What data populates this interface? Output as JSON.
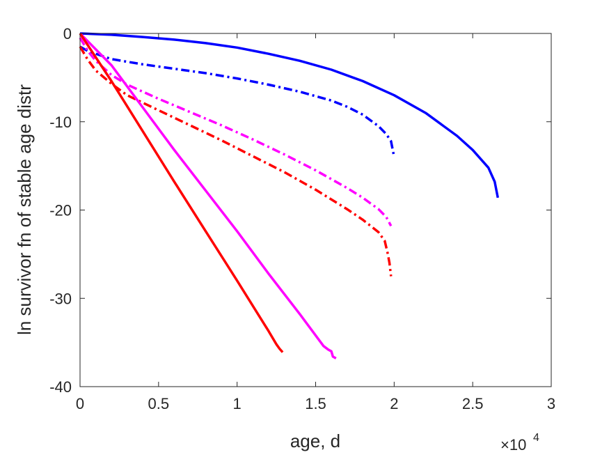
{
  "chart_data": {
    "type": "line",
    "title": "",
    "xlabel": "age, d",
    "ylabel": "ln survivor fn of stable age distr",
    "x_multiplier_label": {
      "base": "×10",
      "exponent": "4"
    },
    "xlim": [
      0,
      30000
    ],
    "ylim": [
      -40,
      0
    ],
    "xticks": [
      0,
      5000,
      10000,
      15000,
      20000,
      25000,
      30000
    ],
    "xtick_labels": [
      "0",
      "0.5",
      "1",
      "1.5",
      "2",
      "2.5",
      "3"
    ],
    "yticks": [
      0,
      -10,
      -20,
      -30,
      -40
    ],
    "ytick_labels": [
      "0",
      "-10",
      "-20",
      "-30",
      "-40"
    ],
    "grid": false,
    "legend": null,
    "series": [
      {
        "color": "#0000ff",
        "style": "solid",
        "x": [
          0,
          2000,
          4000,
          6000,
          8000,
          10000,
          12000,
          14000,
          16000,
          18000,
          20000,
          22000,
          24000,
          25000,
          26000,
          26400,
          26600
        ],
        "y": [
          0,
          -0.15,
          -0.4,
          -0.7,
          -1.1,
          -1.6,
          -2.3,
          -3.1,
          -4.1,
          -5.4,
          -7.0,
          -9.0,
          -11.6,
          -13.2,
          -15.2,
          -16.8,
          -18.6
        ]
      },
      {
        "color": "#0000ff",
        "style": "dashdot",
        "x": [
          0,
          500,
          1000,
          2000,
          4000,
          6000,
          8000,
          10000,
          12000,
          14000,
          16000,
          17000,
          18000,
          19000,
          19500,
          19800,
          20000
        ],
        "y": [
          -1.5,
          -2.0,
          -2.3,
          -2.9,
          -3.5,
          -4.0,
          -4.5,
          -5.1,
          -5.8,
          -6.6,
          -7.6,
          -8.3,
          -9.2,
          -10.5,
          -11.4,
          -12.2,
          -14.0
        ]
      },
      {
        "color": "#ff00ff",
        "style": "dashdot",
        "x": [
          0,
          500,
          1000,
          2000,
          3000,
          5000,
          7000,
          9000,
          11000,
          13000,
          15000,
          17000,
          18000,
          19000,
          19500,
          19800
        ],
        "y": [
          -0.5,
          -2.0,
          -3.1,
          -4.7,
          -5.8,
          -7.4,
          -8.9,
          -10.4,
          -12.0,
          -13.7,
          -15.5,
          -17.5,
          -18.6,
          -19.9,
          -20.8,
          -21.8
        ]
      },
      {
        "color": "#ff0000",
        "style": "dashdot",
        "x": [
          0,
          500,
          1000,
          2000,
          3000,
          5000,
          7000,
          9000,
          11000,
          13000,
          15000,
          17000,
          18000,
          19000,
          19400,
          19600,
          19700,
          19800
        ],
        "y": [
          -1.5,
          -3.0,
          -4.2,
          -5.7,
          -7.0,
          -8.7,
          -10.4,
          -12.1,
          -13.9,
          -15.7,
          -17.7,
          -19.9,
          -21.1,
          -22.5,
          -23.5,
          -25.0,
          -26.0,
          -27.5
        ]
      },
      {
        "color": "#ff00ff",
        "style": "solid",
        "x": [
          0,
          2000,
          4000,
          6000,
          8000,
          10000,
          12000,
          14000,
          15500,
          15800,
          16000,
          16100,
          16300
        ],
        "y": [
          0,
          -3.6,
          -8.4,
          -13.2,
          -17.8,
          -22.4,
          -27.2,
          -31.8,
          -35.4,
          -35.8,
          -36.0,
          -36.6,
          -36.8
        ]
      },
      {
        "color": "#ff0000",
        "style": "solid",
        "x": [
          0,
          2000,
          4000,
          6000,
          8000,
          10000,
          12000,
          12500,
          12700,
          12900
        ],
        "y": [
          0,
          -5.4,
          -11.1,
          -16.8,
          -22.4,
          -28.0,
          -33.7,
          -35.2,
          -35.7,
          -36.1
        ]
      }
    ]
  }
}
